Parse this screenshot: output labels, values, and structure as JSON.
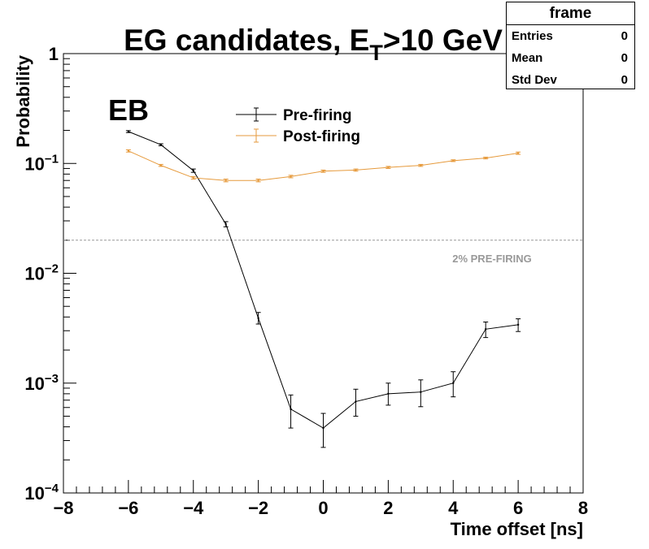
{
  "chart_data": {
    "type": "line",
    "title": "EG candidates, E_T>10 GeV",
    "title_main": "EG candidates, E",
    "title_sub": "T",
    "title_tail": ">10 GeV",
    "xlabel": "Time offset [ns]",
    "ylabel": "Probability",
    "xlim": [
      -8,
      8
    ],
    "ylim": [
      0.0001,
      1
    ],
    "yscale": "log",
    "x_ticks": [
      -8,
      -6,
      -4,
      -2,
      0,
      2,
      4,
      6,
      8
    ],
    "x_tick_labels": [
      "−8",
      "−6",
      "−4",
      "−2",
      "0",
      "2",
      "4",
      "6",
      "8"
    ],
    "y_ticks": [
      0.0001,
      0.001,
      0.01,
      0.1,
      1
    ],
    "y_tick_labels": [
      {
        "base": "10",
        "exp": "−4"
      },
      {
        "base": "10",
        "exp": "−3"
      },
      {
        "base": "10",
        "exp": "−2"
      },
      {
        "base": "10",
        "exp": "−1"
      },
      {
        "base": "1",
        "exp": ""
      }
    ],
    "region_label": "EB",
    "legend_position": "top-center",
    "grid": false,
    "series": [
      {
        "name": "Pre-firing",
        "color": "#000000",
        "x": [
          -6,
          -5,
          -4,
          -3,
          -2,
          -1,
          0,
          1,
          2,
          3,
          4,
          5,
          6
        ],
        "y": [
          0.195,
          0.148,
          0.086,
          0.028,
          0.0039,
          0.00058,
          0.00039,
          0.00068,
          0.0008,
          0.00083,
          0.001,
          0.0031,
          0.0034
        ],
        "err_low": [
          0.004,
          0.003,
          0.003,
          0.0015,
          0.00045,
          0.00019,
          0.00013,
          0.00018,
          0.00017,
          0.00022,
          0.00025,
          0.0005,
          0.00045
        ],
        "err_high": [
          0.004,
          0.003,
          0.003,
          0.0015,
          0.0005,
          0.0002,
          0.00014,
          0.0002,
          0.0002,
          0.00024,
          0.00027,
          0.0005,
          0.00045
        ]
      },
      {
        "name": "Post-firing",
        "color": "#e69a3c",
        "x": [
          -6,
          -5,
          -4,
          -3,
          -2,
          -1,
          0,
          1,
          2,
          3,
          4,
          5,
          6
        ],
        "y": [
          0.13,
          0.096,
          0.074,
          0.07,
          0.07,
          0.076,
          0.085,
          0.087,
          0.092,
          0.096,
          0.106,
          0.112,
          0.124
        ],
        "err_low": [
          0.003,
          0.002,
          0.002,
          0.002,
          0.002,
          0.002,
          0.002,
          0.002,
          0.002,
          0.002,
          0.002,
          0.002,
          0.003
        ],
        "err_high": [
          0.003,
          0.002,
          0.002,
          0.002,
          0.002,
          0.002,
          0.002,
          0.002,
          0.002,
          0.002,
          0.002,
          0.002,
          0.003
        ]
      }
    ],
    "reference_line": {
      "y": 0.02,
      "label": "2% PRE-FIRING",
      "color": "#999999"
    }
  },
  "stats_box": {
    "title": "frame",
    "rows": [
      {
        "label": "Entries",
        "value": "0"
      },
      {
        "label": "Mean",
        "value": "0"
      },
      {
        "label": "Std Dev",
        "value": "0"
      }
    ]
  }
}
